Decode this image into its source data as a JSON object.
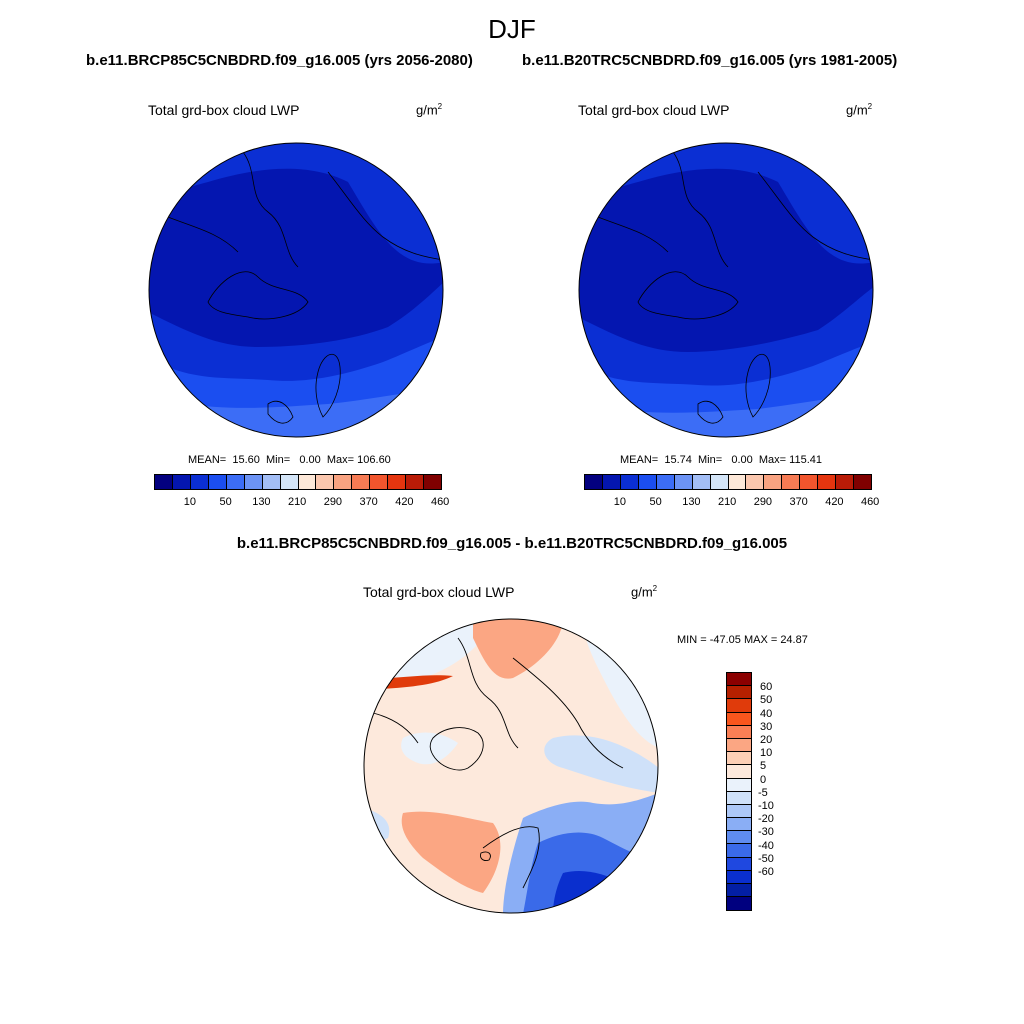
{
  "header": {
    "title": "DJF",
    "left_case": "b.e11.BRCP85C5CNBDRD.f09_g16.005 (yrs 2056-2080)",
    "right_case": "b.e11.B20TRC5CNBDRD.f09_g16.005 (yrs 1981-2005)",
    "diff_title": "b.e11.BRCP85C5CNBDRD.f09_g16.005 - b.e11.B20TRC5CNBDRD.f09_g16.005"
  },
  "variable": {
    "label": "Total grd-box cloud LWP",
    "unit_base": "g/m",
    "unit_exp": "2"
  },
  "panels": {
    "left": {
      "mean_label": "MEAN=",
      "mean": "15.60",
      "min_label": "Min=",
      "min": "0.00",
      "max_label": "Max=",
      "max": "106.60"
    },
    "right": {
      "mean_label": "MEAN=",
      "mean": "15.74",
      "min_label": "Min=",
      "min": "0.00",
      "max_label": "Max=",
      "max": "115.41"
    },
    "diff": {
      "stats_text": "MIN = -47.05 MAX =  24.87"
    }
  },
  "colorbar_main": {
    "colors": [
      "#03007f",
      "#0416b0",
      "#0b2fd3",
      "#1b4ef0",
      "#3c6df6",
      "#6c93f5",
      "#a3bef6",
      "#d4e5f8",
      "#fde8d8",
      "#fbc7ae",
      "#f9a381",
      "#f77b54",
      "#f2552d",
      "#e5350f",
      "#b91b07",
      "#800000"
    ],
    "tick_labels": [
      "10",
      "50",
      "130",
      "210",
      "290",
      "370",
      "420",
      "460"
    ],
    "tick_positions": [
      1,
      3,
      5,
      7,
      9,
      11,
      13,
      15
    ]
  },
  "colorbar_diff": {
    "colors": [
      "#8b0000",
      "#b52000",
      "#e03b0b",
      "#f9561d",
      "#fa7f55",
      "#fba683",
      "#fdcfb5",
      "#fde9dc",
      "#eaf2fb",
      "#cfe1f9",
      "#adc8f7",
      "#8aaef5",
      "#5f8cf0",
      "#3a6ae9",
      "#1f48e0",
      "#0a2fce",
      "#031fa4",
      "#00007f"
    ],
    "tick_labels": [
      "60",
      "50",
      "40",
      "30",
      "20",
      "10",
      "5",
      "0",
      "-5",
      "-10",
      "-20",
      "-30",
      "-40",
      "-50",
      "-60"
    ]
  },
  "chart_data": {
    "type": "map",
    "projection": "polar stereographic (north pole)",
    "season": "DJF",
    "field": "Total grd-box cloud LWP",
    "panels": [
      {
        "case": "b.e11.BRCP85C5CNBDRD.f09_g16.005 (yrs 2056-2080)",
        "mean": 15.6,
        "min": 0.0,
        "max": 106.6
      },
      {
        "case": "b.e11.B20TRC5CNBDRD.f09_g16.005 (yrs 1981-2005)",
        "mean": 15.74,
        "min": 0.0,
        "max": 115.41
      },
      {
        "case": "b.e11.BRCP85C5CNBDRD.f09_g16.005 - b.e11.B20TRC5CNBDRD.f09_g16.005",
        "min": -47.05,
        "max": 24.87
      }
    ],
    "levels_main": [
      10,
      50,
      130,
      210,
      290,
      370,
      420,
      460
    ],
    "levels_diff": [
      60,
      50,
      40,
      30,
      20,
      10,
      5,
      0,
      -5,
      -10,
      -20,
      -30,
      -40,
      -50,
      -60
    ]
  }
}
